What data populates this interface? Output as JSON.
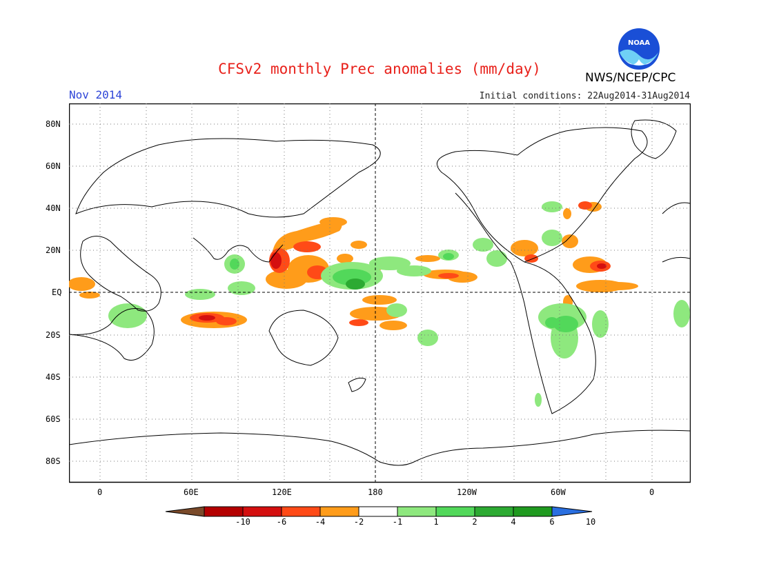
{
  "header": {
    "title": "CFSv2 monthly Prec anomalies (mm/day)",
    "month": "Nov 2014",
    "initial_conditions": "Initial conditions: 22Aug2014-31Aug2014",
    "agency": "NWS/NCEP/CPC",
    "logo_text": "NOAA"
  },
  "map": {
    "lat_labels": [
      "80N",
      "60N",
      "40N",
      "20N",
      "EQ",
      "20S",
      "40S",
      "60S",
      "80S"
    ],
    "lon_labels": [
      "0",
      "60E",
      "120E",
      "180",
      "120W",
      "60W",
      "0"
    ],
    "projection": "cylindrical-equidistant",
    "lon_range": [
      -20,
      380
    ],
    "lat_range": [
      -90,
      90
    ],
    "grid": "dotted, 20 deg lat / 30 deg lon",
    "reference_lines": [
      "equator",
      "dateline"
    ]
  },
  "colorbar": {
    "labels": [
      "-10",
      "-6",
      "-4",
      "-2",
      "-1",
      "1",
      "2",
      "4",
      "6",
      "10"
    ],
    "colors": [
      "#7a4a2a",
      "#b40000",
      "#d40f0f",
      "#ff4a17",
      "#ff9c1a",
      "#ffffff",
      "#8ee87e",
      "#52d85a",
      "#2caa32",
      "#1f9a1f",
      "#2a6fe0"
    ]
  }
}
